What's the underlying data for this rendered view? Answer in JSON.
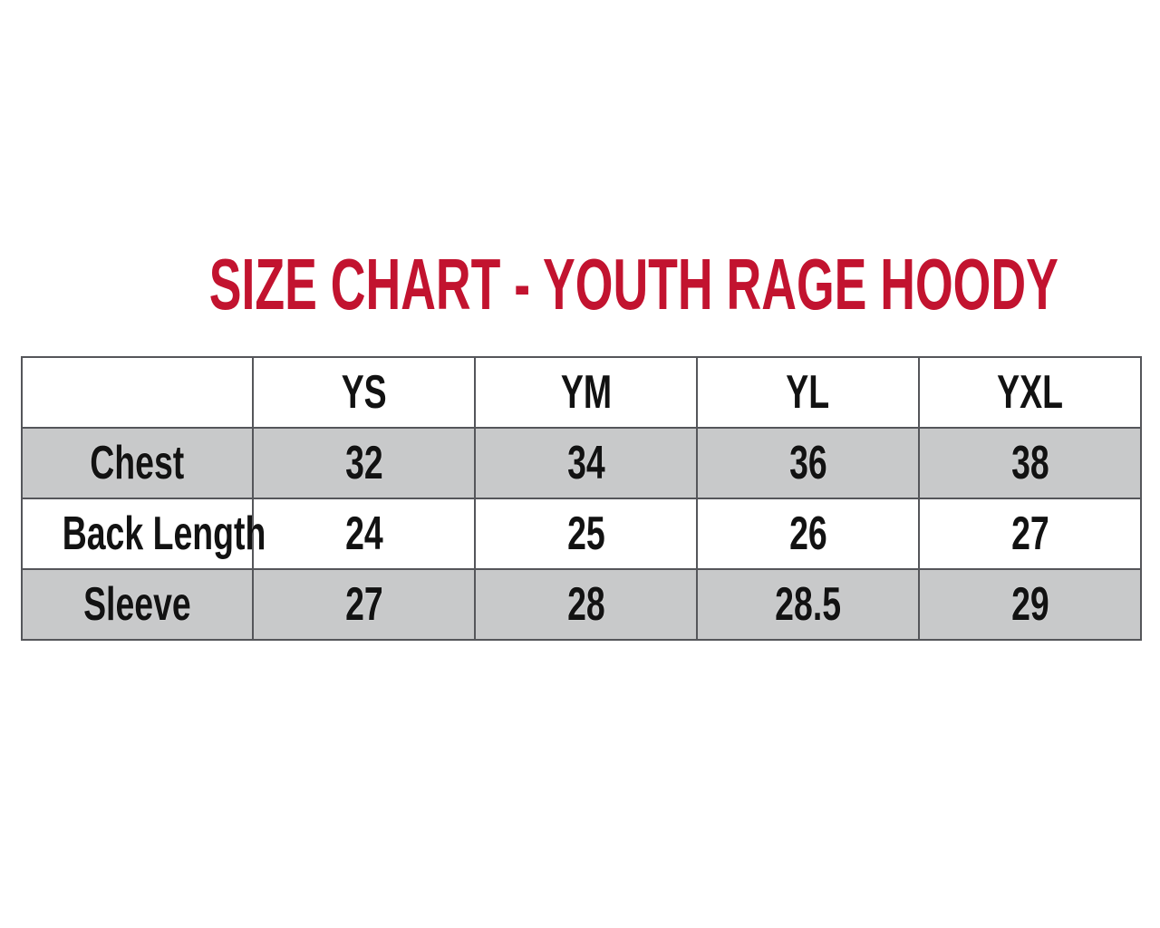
{
  "title": {
    "text": "SIZE CHART - YOUTH RAGE HOODY",
    "color": "#C2132F"
  },
  "colors": {
    "title_red": "#C2132F",
    "row_shade": "#C8C9CA",
    "border": "#55565A",
    "text": "#121212",
    "background": "#FFFFFF"
  },
  "chart_data": {
    "type": "table",
    "title": "SIZE CHART - YOUTH RAGE HOODY",
    "columns": [
      "",
      "YS",
      "YM",
      "YL",
      "YXL"
    ],
    "rows": [
      {
        "label": "Chest",
        "values": [
          "32",
          "34",
          "36",
          "38"
        ]
      },
      {
        "label": "Back Length",
        "values": [
          "24",
          "25",
          "26",
          "27"
        ]
      },
      {
        "label": "Sleeve",
        "values": [
          "27",
          "28",
          "28.5",
          "29"
        ]
      }
    ],
    "layout_hints": {
      "shaded_rows": [
        "Chest",
        "Sleeve"
      ],
      "header_row_background": "#FFFFFF",
      "grid": true
    }
  }
}
